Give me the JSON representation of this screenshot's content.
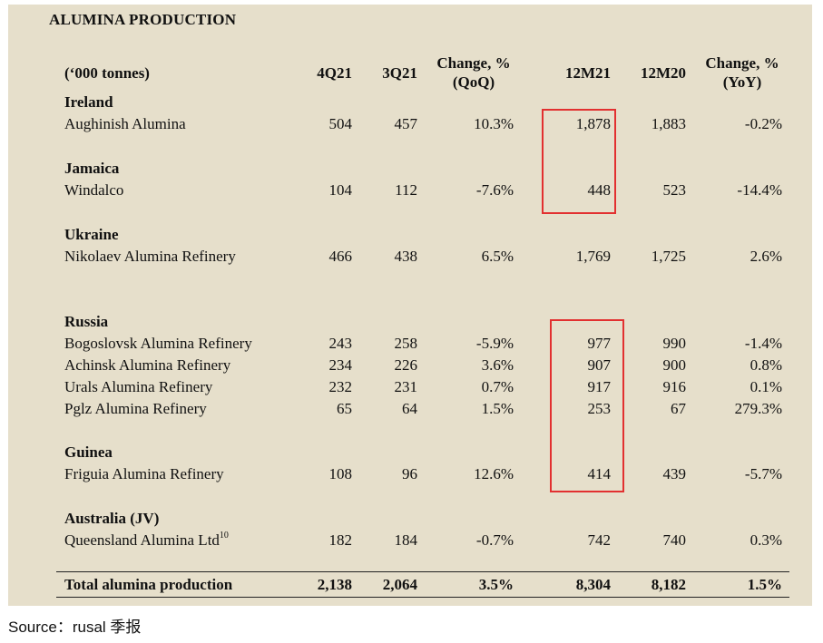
{
  "title": "ALUMINA PRODUCTION",
  "header": {
    "unit": "(‘000 tonnes)",
    "col_4q21": "4Q21",
    "col_3q21": "3Q21",
    "col_qoq_line1": "Change, %",
    "col_qoq_line2": "(QoQ)",
    "col_12m21": "12M21",
    "col_12m20": "12M20",
    "col_yoy_line1": "Change, %",
    "col_yoy_line2": "(YoY)"
  },
  "groups": {
    "ireland": "Ireland",
    "jamaica": "Jamaica",
    "ukraine": "Ukraine",
    "russia": "Russia",
    "guinea": "Guinea",
    "australia": "Australia (JV)"
  },
  "rows": {
    "aughinish": {
      "name": "Aughinish Alumina",
      "q4": "504",
      "q3": "457",
      "qoq": "10.3%",
      "m21": "1,878",
      "m20": "1,883",
      "yoy": "-0.2%"
    },
    "windalco": {
      "name": "Windalco",
      "q4": "104",
      "q3": "112",
      "qoq": "-7.6%",
      "m21": "448",
      "m20": "523",
      "yoy": "-14.4%"
    },
    "nikolaev": {
      "name": "Nikolaev Alumina Refinery",
      "q4": "466",
      "q3": "438",
      "qoq": "6.5%",
      "m21": "1,769",
      "m20": "1,725",
      "yoy": "2.6%"
    },
    "bogoslovsk": {
      "name": "Bogoslovsk Alumina Refinery",
      "q4": "243",
      "q3": "258",
      "qoq": "-5.9%",
      "m21": "977",
      "m20": "990",
      "yoy": "-1.4%"
    },
    "achinsk": {
      "name": "Achinsk Alumina Refinery",
      "q4": "234",
      "q3": "226",
      "qoq": "3.6%",
      "m21": "907",
      "m20": "900",
      "yoy": "0.8%"
    },
    "urals": {
      "name": "Urals Alumina Refinery",
      "q4": "232",
      "q3": "231",
      "qoq": "0.7%",
      "m21": "917",
      "m20": "916",
      "yoy": "0.1%"
    },
    "pglz": {
      "name": "Pglz Alumina Refinery",
      "q4": "65",
      "q3": "64",
      "qoq": "1.5%",
      "m21": "253",
      "m20": "67",
      "yoy": "279.3%"
    },
    "friguia": {
      "name": "Friguia Alumina Refinery",
      "q4": "108",
      "q3": "96",
      "qoq": "12.6%",
      "m21": "414",
      "m20": "439",
      "yoy": "-5.7%"
    },
    "queensland": {
      "name": "Queensland Alumina Ltd",
      "footnote": "10",
      "q4": "182",
      "q3": "184",
      "qoq": "-0.7%",
      "m21": "742",
      "m20": "740",
      "yoy": "0.3%"
    },
    "total": {
      "name": "Total alumina production",
      "q4": "2,138",
      "q3": "2,064",
      "qoq": "3.5%",
      "m21": "8,304",
      "m20": "8,182",
      "yoy": "1.5%"
    }
  },
  "highlight_color": "#e23030",
  "source": "Source：rusal 季报"
}
